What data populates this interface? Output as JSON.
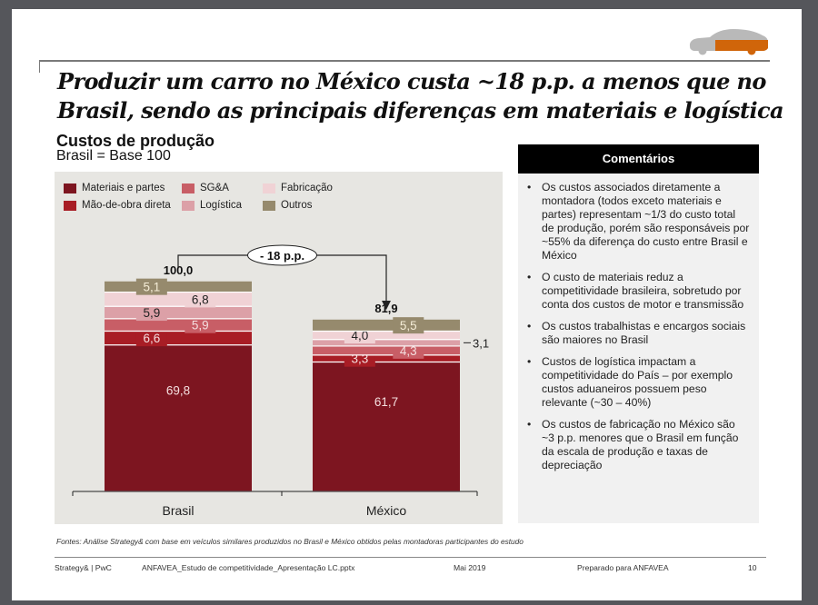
{
  "slide": {
    "title": "Produzir um carro no México custa ~18 p.p. a menos que no Brasil, sendo as principais diferenças em materiais e logística",
    "icon": "car-icon",
    "colors": {
      "car_gray": "#b9b9b9",
      "car_accent": "#d0650a"
    }
  },
  "section": {
    "heading": "Custos de produção",
    "subheading": "Brasil = Base 100"
  },
  "chart_data": {
    "type": "bar",
    "stacked": true,
    "title": "Custos de produção",
    "subtitle": "Brasil = Base 100",
    "categories": [
      "Brasil",
      "México"
    ],
    "series": [
      {
        "name": "Materiais e partes",
        "color": "#7d1520",
        "values": [
          69.8,
          61.7
        ],
        "labels": [
          "69,8",
          "61,7"
        ]
      },
      {
        "name": "Mão-de-obra direta",
        "color": "#a81d25",
        "values": [
          6.6,
          3.3
        ],
        "labels": [
          "6,6",
          "3,3"
        ]
      },
      {
        "name": "SG&A",
        "color": "#c85e66",
        "values": [
          5.9,
          4.3
        ],
        "labels": [
          "5,9",
          "4,3"
        ]
      },
      {
        "name": "Logística",
        "color": "#dca0a7",
        "values": [
          5.9,
          3.1
        ],
        "labels": [
          "5,9",
          "3,1"
        ]
      },
      {
        "name": "Fabricação",
        "color": "#f0d2d5",
        "values": [
          6.8,
          4.0
        ],
        "labels": [
          "6,8",
          "4,0"
        ]
      },
      {
        "name": "Outros",
        "color": "#968a6d",
        "values": [
          5.1,
          5.5
        ],
        "labels": [
          "5,1",
          "5,5"
        ]
      }
    ],
    "totals": [
      100.0,
      81.9
    ],
    "total_labels": [
      "100,0",
      "81,9"
    ],
    "annotation": "- 18 p.p.",
    "legend_position": "top-left",
    "ylim": [
      0,
      100
    ],
    "grid": false,
    "xlabel": "",
    "ylabel": ""
  },
  "comments": {
    "header": "Comentários",
    "items": [
      "Os custos associados diretamente a montadora (todos exceto materiais e partes) representam ~1/3 do custo total de produção, porém são responsáveis por ~55% da diferença do custo entre Brasil e México",
      "O custo de materiais reduz a competitividade brasileira, sobretudo por conta dos custos de motor e transmissão",
      "Os custos trabalhistas e encargos sociais são maiores no Brasil",
      "Custos de logística impactam a competitividade do País – por exemplo custos aduaneiros possuem peso relevante (~30 – 40%)",
      "Os custos de fabricação no México são ~3 p.p. menores que o Brasil em função da escala de produção e taxas de depreciação"
    ]
  },
  "source": "Fontes: Análise Strategy& com base em veículos similares produzidos no Brasil e México obtidos pelas montadoras participantes do estudo",
  "footer": {
    "brand": "Strategy& | PwC",
    "file": "ANFAVEA_Estudo de competitividade_Apresentação LC.pptx",
    "date": "Mai 2019",
    "prepared": "Preparado para ANFAVEA",
    "page": "10"
  }
}
